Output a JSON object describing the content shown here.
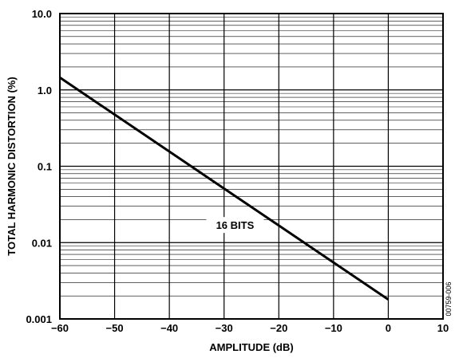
{
  "chart_data": {
    "type": "line",
    "xlabel": "AMPLITUDE (dB)",
    "ylabel": "TOTAL HARMONIC DISTORTION (%)",
    "x_scale": "linear",
    "y_scale": "log",
    "xlim": [
      -60,
      10
    ],
    "ylim": [
      0.001,
      10.0
    ],
    "grid": true,
    "x_ticks": [
      -60,
      -50,
      -40,
      -30,
      -20,
      -10,
      0,
      10
    ],
    "x_tick_labels": [
      "−60",
      "−50",
      "−40",
      "−30",
      "−20",
      "−10",
      "0",
      "10"
    ],
    "y_ticks": [
      0.001,
      0.01,
      0.1,
      1.0,
      10.0
    ],
    "y_tick_labels": [
      "0.001",
      "0.01",
      "0.1",
      "1.0",
      "10.0"
    ],
    "series": [
      {
        "name": "16 BITS",
        "color": "#000000",
        "x": [
          -60,
          0
        ],
        "y": [
          1.45,
          0.0018
        ]
      }
    ],
    "annotations": [
      {
        "text": "16 BITS",
        "x": -28,
        "y": 0.017
      }
    ]
  },
  "figure_id": "00759-006"
}
